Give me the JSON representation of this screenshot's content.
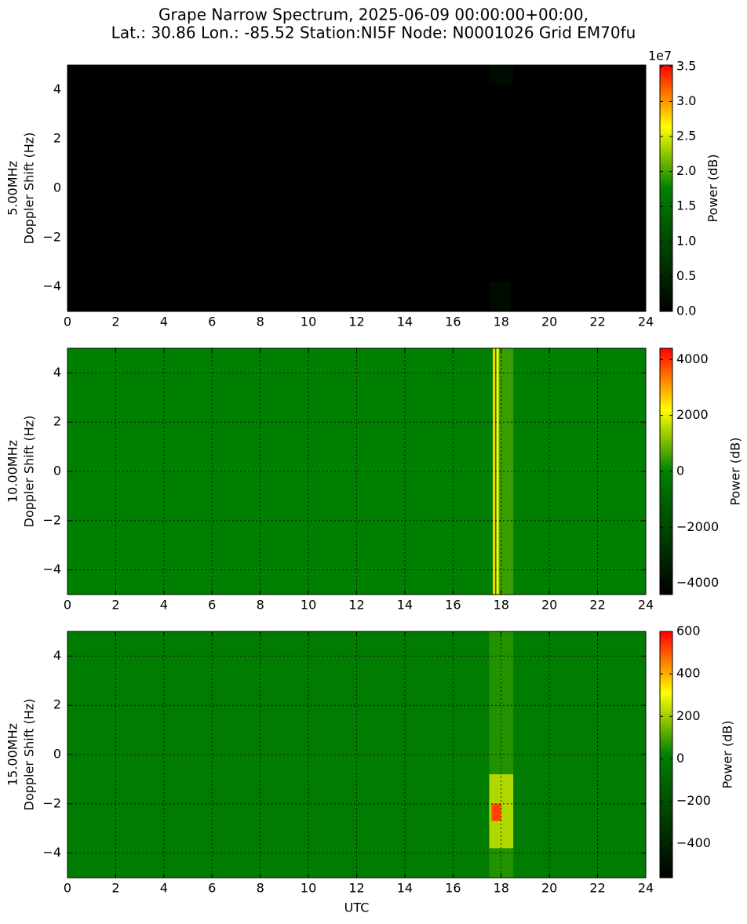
{
  "title": [
    "Grape Narrow Spectrum, 2025-06-09 00:00:00+00:00,",
    "Lat.: 30.86 Lon.: -85.52 Station:NI5F Node: N0001026 Grid EM70fu"
  ],
  "chart_data": [
    {
      "type": "heatmap",
      "ylabel": [
        "5.00MHz",
        "Doppler Shift (Hz)"
      ],
      "xlim": [
        0,
        24
      ],
      "xticks": [
        0,
        2,
        4,
        6,
        8,
        10,
        12,
        14,
        16,
        18,
        20,
        22,
        24
      ],
      "ylim": [
        -5,
        5
      ],
      "yticks": [
        {
          "value": -4,
          "label": "−4"
        },
        {
          "value": -2,
          "label": "−2"
        },
        0,
        2,
        4
      ],
      "grid": true,
      "colormap": [
        "#000000",
        "#008000",
        "#ffff00",
        "#ff0000"
      ],
      "clim": [
        0,
        3.52
      ],
      "clabel": "Power (dB)",
      "offset_label": "1e7",
      "cticks": [
        {
          "value": 0,
          "label": "0.0"
        },
        {
          "value": 0.5,
          "label": "0.5"
        },
        {
          "value": 1,
          "label": "1.0"
        },
        {
          "value": 1.5,
          "label": "1.5"
        },
        {
          "value": 2,
          "label": "2.0"
        },
        {
          "value": 2.5,
          "label": "2.5"
        },
        {
          "value": 3,
          "label": "3.0"
        },
        {
          "value": 3.5,
          "label": "3.5"
        }
      ],
      "cells": [
        {
          "x": [
            0,
            24
          ],
          "y": [
            -5,
            5
          ],
          "value": 0
        },
        {
          "x": [
            17.5,
            18.5
          ],
          "y": [
            4.2,
            5
          ],
          "value": 0.15
        },
        {
          "x": [
            17.5,
            18.4
          ],
          "y": [
            -5,
            -3.8
          ],
          "value": 0.15
        }
      ]
    },
    {
      "type": "heatmap",
      "ylabel": [
        "10.00MHz",
        "Doppler Shift (Hz)"
      ],
      "xlim": [
        0,
        24
      ],
      "xticks": [
        0,
        2,
        4,
        6,
        8,
        10,
        12,
        14,
        16,
        18,
        20,
        22,
        24
      ],
      "ylim": [
        -5,
        5
      ],
      "yticks": [
        {
          "value": -4,
          "label": "−4"
        },
        {
          "value": -2,
          "label": "−2"
        },
        0,
        2,
        4
      ],
      "grid": true,
      "colormap": [
        "#000000",
        "#008000",
        "#ffff00",
        "#ff0000"
      ],
      "clim": [
        -4400,
        4400
      ],
      "clabel": "Power (dB)",
      "cticks": [
        {
          "value": -4000,
          "label": "−4000"
        },
        {
          "value": -2000,
          "label": "−2000"
        },
        0,
        2000,
        4000
      ],
      "cells": [
        {
          "x": [
            0,
            24
          ],
          "y": [
            -5,
            5
          ],
          "value": 0
        },
        {
          "x": [
            17.9,
            18.5
          ],
          "y": [
            -5,
            5
          ],
          "value": 500
        },
        {
          "x": [
            17.65,
            17.75
          ],
          "y": [
            -5,
            5
          ],
          "value": 2600
        },
        {
          "x": [
            17.8,
            17.9
          ],
          "y": [
            -5,
            5
          ],
          "value": 2200
        }
      ]
    },
    {
      "type": "heatmap",
      "ylabel": [
        "15.00MHz",
        "Doppler Shift (Hz)"
      ],
      "xlabel": "UTC",
      "xlim": [
        0,
        24
      ],
      "xticks": [
        0,
        2,
        4,
        6,
        8,
        10,
        12,
        14,
        16,
        18,
        20,
        22,
        24
      ],
      "ylim": [
        -5,
        5
      ],
      "yticks": [
        {
          "value": -4,
          "label": "−4"
        },
        {
          "value": -2,
          "label": "−2"
        },
        0,
        2,
        4
      ],
      "grid": true,
      "colormap": [
        "#000000",
        "#008000",
        "#ffff00",
        "#ff0000"
      ],
      "clim": [
        -560,
        600
      ],
      "clabel": "Power (dB)",
      "cticks": [
        {
          "value": -400,
          "label": "−400"
        },
        {
          "value": -200,
          "label": "−200"
        },
        0,
        200,
        400,
        600
      ],
      "cells": [
        {
          "x": [
            0,
            24
          ],
          "y": [
            -5,
            5
          ],
          "value": 0
        },
        {
          "x": [
            17.5,
            18.5
          ],
          "y": [
            -5,
            5
          ],
          "value": 60
        },
        {
          "x": [
            17.5,
            18.5
          ],
          "y": [
            -3.8,
            -0.8
          ],
          "value": 220
        },
        {
          "x": [
            17.6,
            18.0
          ],
          "y": [
            -2.7,
            -2.0
          ],
          "value": 520
        }
      ]
    }
  ]
}
